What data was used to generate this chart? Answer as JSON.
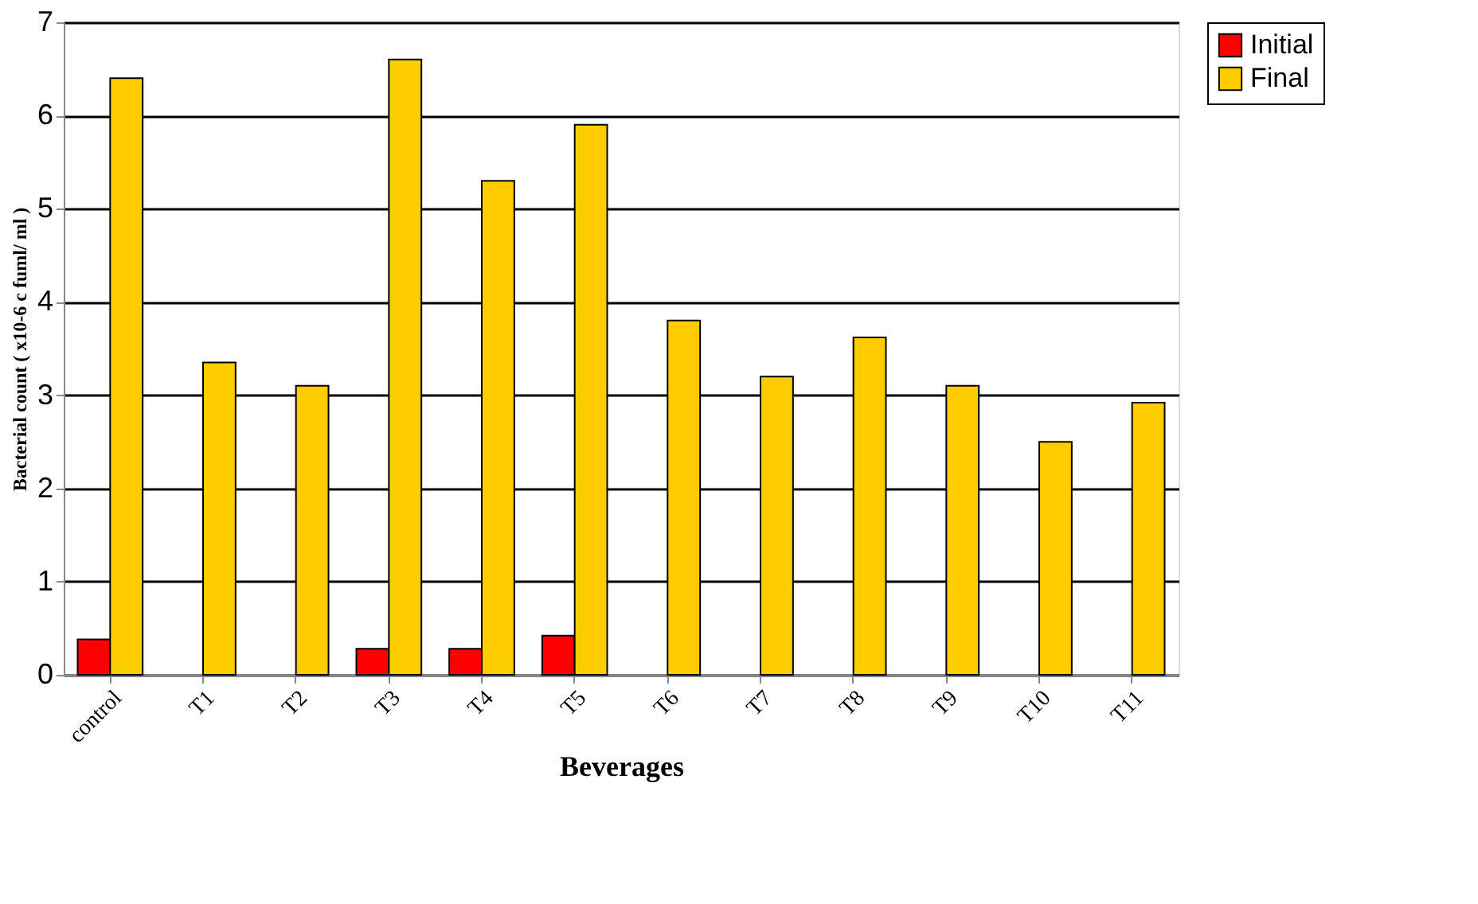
{
  "chart_data": {
    "type": "bar",
    "xlabel": "Beverages",
    "ylabel": "Bacterial count ( x10-6 c fuml/ ml )",
    "categories": [
      "control",
      "T1",
      "T2",
      "T3",
      "T4",
      "T5",
      "T6",
      "T7",
      "T8",
      "T9",
      "T10",
      "T11"
    ],
    "series": [
      {
        "name": "Initial",
        "color": "#ff0000",
        "values": [
          0.38,
          null,
          null,
          0.28,
          0.28,
          0.42,
          null,
          null,
          null,
          null,
          null,
          null
        ]
      },
      {
        "name": "Final",
        "color": "#ffcc00",
        "values": [
          6.4,
          3.35,
          3.1,
          6.6,
          5.3,
          5.9,
          3.8,
          3.2,
          3.62,
          3.1,
          2.5,
          2.92
        ]
      }
    ],
    "ylim": [
      0,
      7
    ],
    "yticks": [
      0,
      1,
      2,
      3,
      4,
      5,
      6,
      7
    ],
    "grid": "y",
    "legend": "right"
  }
}
